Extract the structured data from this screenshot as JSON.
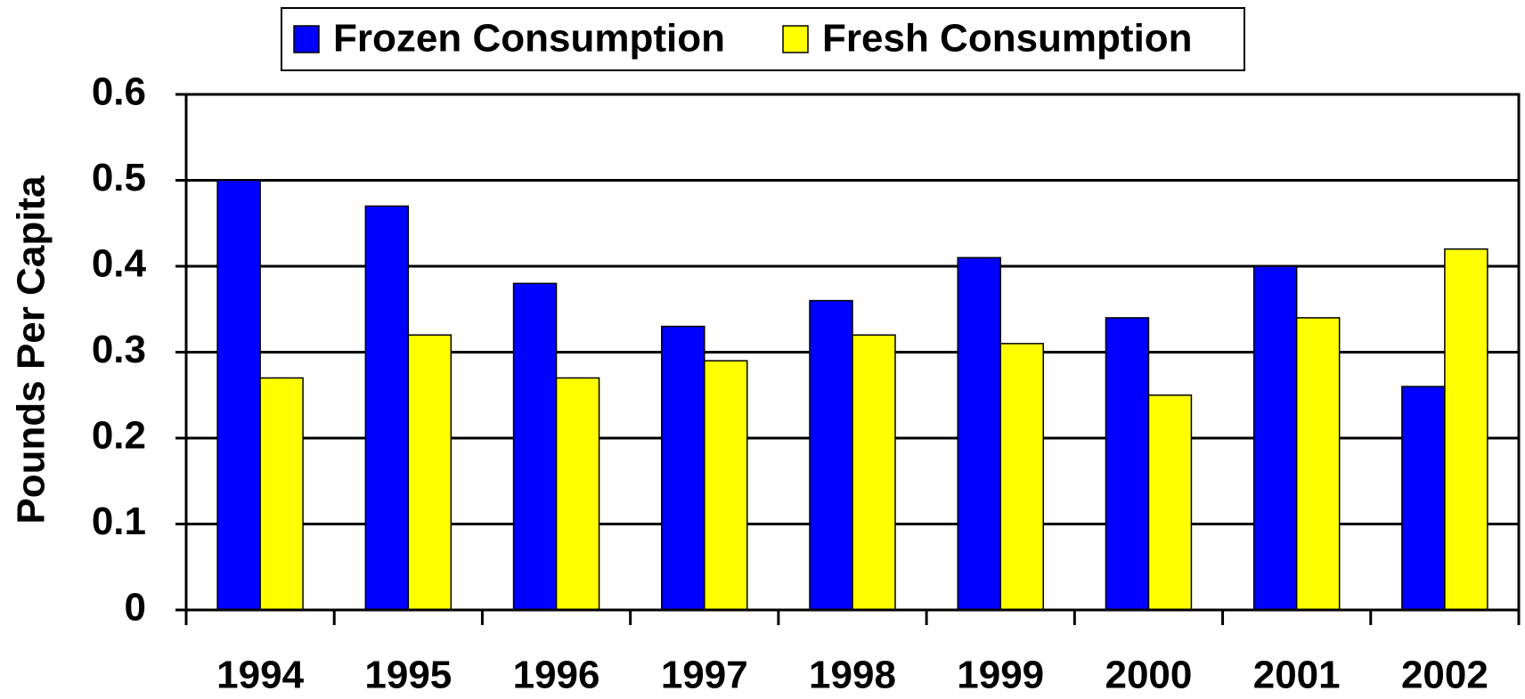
{
  "chart_data": {
    "type": "bar",
    "ylabel": "Pounds Per Capita",
    "categories": [
      "1994",
      "1995",
      "1996",
      "1997",
      "1998",
      "1999",
      "2000",
      "2001",
      "2002"
    ],
    "series": [
      {
        "name": "Frozen Consumption",
        "color": "#0000ff",
        "values": [
          0.5,
          0.47,
          0.38,
          0.33,
          0.36,
          0.41,
          0.34,
          0.4,
          0.26
        ]
      },
      {
        "name": "Fresh Consumption",
        "color": "#ffff00",
        "values": [
          0.27,
          0.32,
          0.27,
          0.29,
          0.32,
          0.31,
          0.25,
          0.34,
          0.42
        ]
      }
    ],
    "ylim": [
      0,
      0.6
    ],
    "yticks": [
      0,
      0.1,
      0.2,
      0.3,
      0.4,
      0.5,
      0.6
    ],
    "grid": true,
    "legend": "top"
  }
}
